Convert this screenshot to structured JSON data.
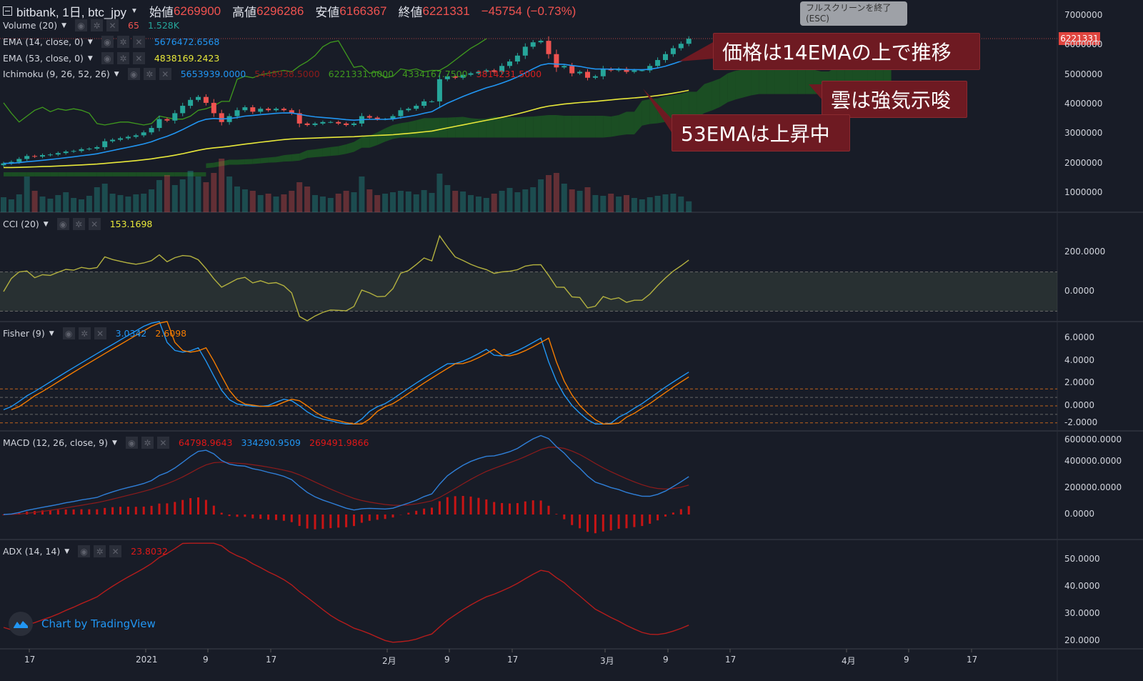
{
  "header": {
    "symbol": "bitbank, 1日, btc_jpy",
    "open_label": "始値",
    "open": "6269900",
    "high_label": "高値",
    "high": "6296286",
    "low_label": "安値",
    "low": "6166367",
    "close_label": "終値",
    "close": "6221331",
    "change": "−45754",
    "change_pct": "(−0.73%)"
  },
  "tooltip": {
    "line1": "フルスクリーンを終了",
    "line2": "(ESC)"
  },
  "legends": {
    "volume": {
      "name": "Volume (20)",
      "values": [
        "65",
        "1.528K"
      ]
    },
    "ema14": {
      "name": "EMA (14, close, 0)",
      "values": [
        "5676472.6568"
      ]
    },
    "ema53": {
      "name": "EMA (53, close, 0)",
      "values": [
        "4838169.2423"
      ]
    },
    "ichimoku": {
      "name": "Ichimoku (9, 26, 52, 26)",
      "values": [
        "5653939.0000",
        "5448938.5000",
        "6221331.0000",
        "4334167.7500",
        "3814231.5000"
      ]
    },
    "cci": {
      "name": "CCI (20)",
      "values": [
        "153.1698"
      ]
    },
    "fisher": {
      "name": "Fisher (9)",
      "values": [
        "3.0342",
        "2.6098"
      ]
    },
    "macd": {
      "name": "MACD (12, 26, close, 9)",
      "values": [
        "64798.9643",
        "334290.9509",
        "269491.9866"
      ]
    },
    "adx": {
      "name": "ADX (14, 14)",
      "values": [
        "23.8032"
      ]
    }
  },
  "annotations": [
    "価格は14EMAの上で推移",
    "雲は強気示唆",
    "53EMAは上昇中"
  ],
  "last_price_tag": "6221331",
  "watermark": "Chart by TradingView",
  "colors": {
    "up": "#26a69a",
    "down": "#ef5350",
    "ema14": "#2196f3",
    "ema53": "#e8e83a",
    "lagging": "#3f9a1e",
    "cci": "#b3b13f",
    "macd": "#2f7fd8",
    "signal": "#8e1b1b",
    "hist": "#c81414",
    "adx": "#b51c1c",
    "fisher": "#2196f3",
    "trigger": "#f57c00"
  },
  "chart_data": {
    "type": "candlestick",
    "x_ticks": [
      "17",
      "2021",
      "9",
      "17",
      "2月",
      "9",
      "17",
      "3月",
      "9",
      "17",
      "4月",
      "9",
      "17"
    ],
    "panes": {
      "price": {
        "y_ticks": [
          "7000000",
          "6000000",
          "5000000",
          "4000000",
          "3000000",
          "2000000",
          "1000000"
        ],
        "ylim": [
          0,
          7300000
        ]
      },
      "cci": {
        "y_ticks": [
          "200.0000",
          "0.0000"
        ],
        "band": [
          -100,
          100
        ]
      },
      "fisher": {
        "y_ticks": [
          "6.0000",
          "4.0000",
          "2.0000",
          "0.0000",
          "-2.0000"
        ],
        "levels": [
          1.5,
          0.75,
          0,
          -0.75,
          -1.5
        ]
      },
      "macd": {
        "y_ticks": [
          "600000.0000",
          "400000.0000",
          "200000.0000",
          "0.0000"
        ]
      },
      "adx": {
        "y_ticks": [
          "50.0000",
          "40.0000",
          "30.0000",
          "20.0000"
        ]
      }
    },
    "closes_thousand_jpy": [
      2000,
      2050,
      2150,
      2250,
      2230,
      2280,
      2300,
      2350,
      2400,
      2420,
      2480,
      2500,
      2550,
      2750,
      2800,
      2850,
      2900,
      2950,
      3050,
      3200,
      3500,
      3450,
      3700,
      3950,
      4150,
      4250,
      4050,
      3700,
      3400,
      3600,
      3800,
      3900,
      3750,
      3850,
      3800,
      3850,
      3800,
      3700,
      3350,
      3300,
      3350,
      3400,
      3400,
      3350,
      3300,
      3350,
      3600,
      3550,
      3500,
      3500,
      3600,
      3800,
      3850,
      3950,
      4100,
      4100,
      4850,
      4950,
      4900,
      5000,
      5050,
      5100,
      5150,
      5100,
      5300,
      5450,
      5650,
      5950,
      6100,
      6150,
      5700,
      5250,
      5300,
      5050,
      5100,
      4900,
      4950,
      5200,
      5150,
      5200,
      5100,
      5150,
      5150,
      5300,
      5500,
      5700,
      5900,
      6050,
      6221.331
    ],
    "volumes_k": [
      2.1,
      1.8,
      2.5,
      5.0,
      3.0,
      2.2,
      1.9,
      2.4,
      2.8,
      2.0,
      1.8,
      2.3,
      3.5,
      4.0,
      2.6,
      2.4,
      2.2,
      2.5,
      2.6,
      3.2,
      4.5,
      5.2,
      3.8,
      4.6,
      5.8,
      5.0,
      4.2,
      5.5,
      7.5,
      5.0,
      3.6,
      3.2,
      3.0,
      2.4,
      2.6,
      2.2,
      2.5,
      3.0,
      4.2,
      3.6,
      2.4,
      2.2,
      2.0,
      2.6,
      3.0,
      2.8,
      5.0,
      3.2,
      2.4,
      2.6,
      2.8,
      3.0,
      2.9,
      2.5,
      3.1,
      2.7,
      5.4,
      3.8,
      3.0,
      2.9,
      2.4,
      2.2,
      2.0,
      2.6,
      3.0,
      3.4,
      2.8,
      3.2,
      3.5,
      4.6,
      5.2,
      5.5,
      4.0,
      3.2,
      3.0,
      3.5,
      2.4,
      2.3,
      2.6,
      2.2,
      2.4,
      2.0,
      1.8,
      2.1,
      2.3,
      2.5,
      2.6,
      2.2,
      1.528
    ]
  }
}
